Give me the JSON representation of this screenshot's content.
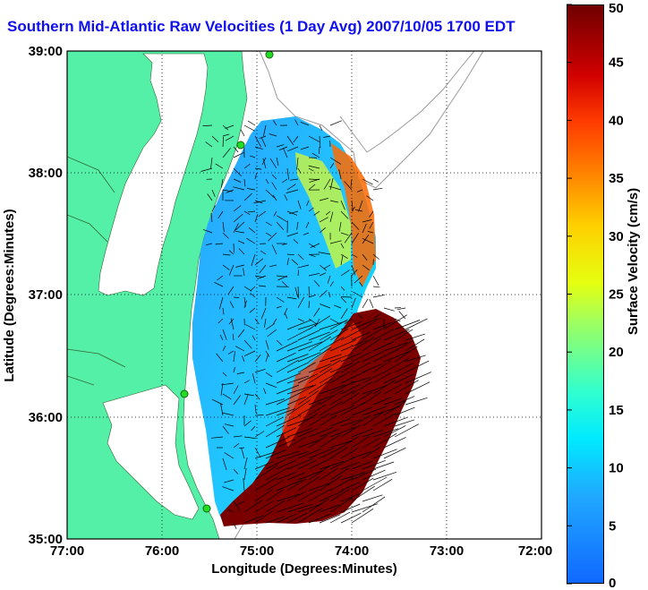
{
  "title": "Southern Mid-Atlantic Raw Velocities (1 Day Avg) 2007/10/05 1700 EDT",
  "axes": {
    "xlabel": "Longitude (Degrees:Minutes)",
    "ylabel": "Latitude (Degrees:Minutes)",
    "x_ticks": [
      "77:00",
      "76:00",
      "75:00",
      "74:00",
      "73:00",
      "72:00"
    ],
    "y_ticks": [
      "39:00",
      "38:00",
      "37:00",
      "36:00",
      "35:00"
    ]
  },
  "colorbar": {
    "label": "Surface Velocity (cm/s)",
    "ticks": [
      "50",
      "45",
      "40",
      "35",
      "30",
      "25",
      "20",
      "15",
      "10",
      "5",
      "0"
    ],
    "range": [
      0,
      50
    ]
  },
  "colors": {
    "land": "#55f0a8",
    "water": "#ffffff",
    "title": "#1010ee",
    "stations": "#22dd22"
  }
}
